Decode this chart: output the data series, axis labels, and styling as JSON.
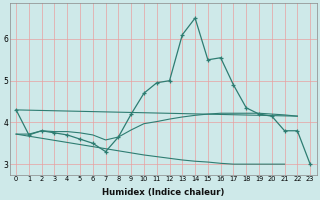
{
  "xlabel": "Humidex (Indice chaleur)",
  "background_color": "#cee9e9",
  "grid_color": "#e8a0a0",
  "line_color": "#2e7d72",
  "main_x": [
    0,
    1,
    2,
    3,
    4,
    5,
    6,
    7,
    8,
    9,
    10,
    11,
    12,
    13,
    14,
    15,
    16,
    17,
    18,
    19,
    20,
    21,
    22,
    23
  ],
  "main_y": [
    4.3,
    3.7,
    3.8,
    3.75,
    3.7,
    3.6,
    3.5,
    3.3,
    3.65,
    4.2,
    4.7,
    4.95,
    5.0,
    6.1,
    6.5,
    5.5,
    5.55,
    4.9,
    4.35,
    4.2,
    4.15,
    3.8,
    3.8,
    3.0
  ],
  "upper_flat_x": [
    0,
    1,
    2,
    3,
    4,
    5,
    6,
    7,
    8,
    9,
    10,
    11,
    12,
    13,
    14,
    15,
    16,
    17,
    18,
    19,
    20,
    21,
    22
  ],
  "upper_flat_y": [
    3.72,
    3.72,
    3.8,
    3.78,
    3.78,
    3.75,
    3.7,
    3.58,
    3.65,
    3.82,
    3.97,
    4.02,
    4.08,
    4.13,
    4.17,
    4.2,
    4.22,
    4.22,
    4.22,
    4.22,
    4.2,
    4.18,
    4.15
  ],
  "lower_diag_x": [
    0,
    1,
    2,
    3,
    4,
    5,
    6,
    7,
    8,
    9,
    10,
    11,
    12,
    13,
    14,
    15,
    16,
    17,
    18,
    19,
    20,
    21
  ],
  "lower_diag_y": [
    3.72,
    3.67,
    3.62,
    3.57,
    3.52,
    3.47,
    3.42,
    3.37,
    3.32,
    3.27,
    3.22,
    3.18,
    3.14,
    3.1,
    3.07,
    3.05,
    3.02,
    3.0,
    3.0,
    3.0,
    3.0,
    3.0
  ],
  "top_line_x": [
    0,
    22
  ],
  "top_line_y": [
    4.3,
    4.15
  ],
  "ylim": [
    2.75,
    6.85
  ],
  "xlim": [
    -0.5,
    23.5
  ],
  "yticks": [
    3,
    4,
    5,
    6
  ],
  "xticks": [
    0,
    1,
    2,
    3,
    4,
    5,
    6,
    7,
    8,
    9,
    10,
    11,
    12,
    13,
    14,
    15,
    16,
    17,
    18,
    19,
    20,
    21,
    22,
    23
  ]
}
